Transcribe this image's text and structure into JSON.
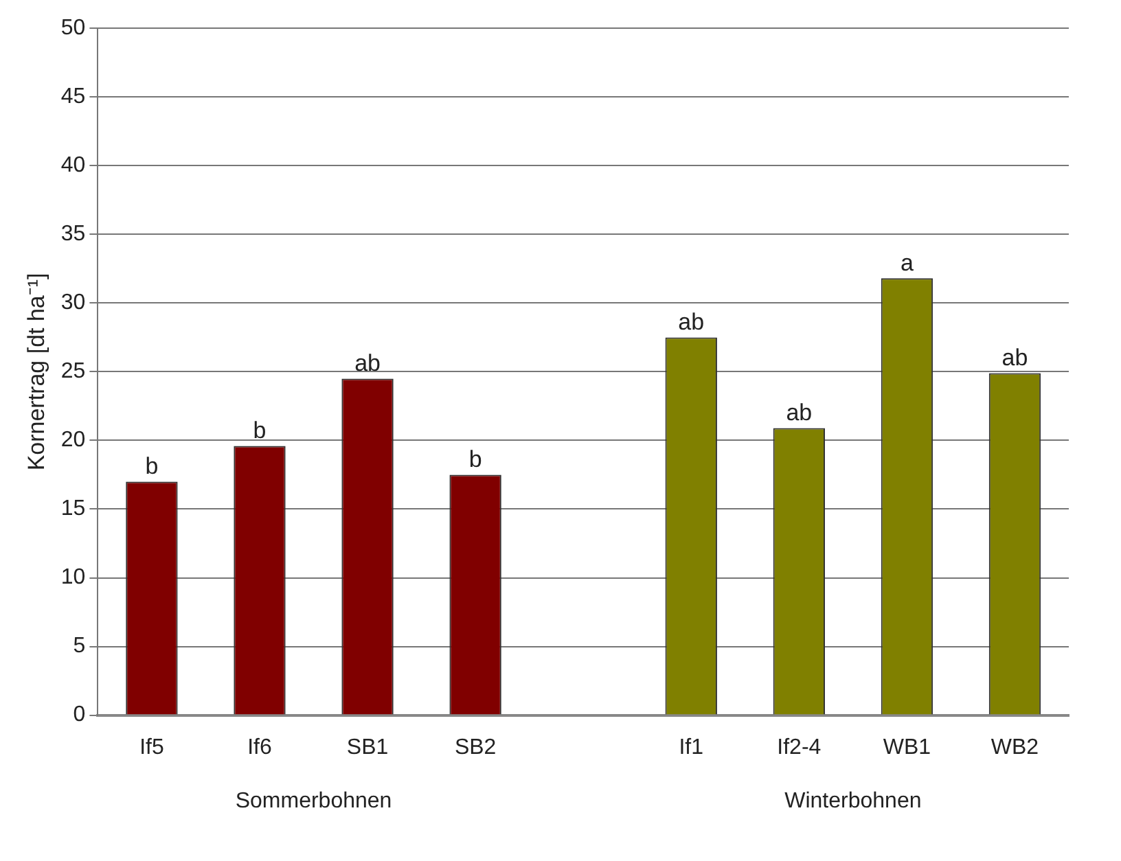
{
  "chart_data": {
    "type": "bar",
    "ylabel": "Kornertrag [dt ha⁻¹]",
    "categories": [
      "If5",
      "If6",
      "SB1",
      "SB2",
      null,
      "If1",
      "If2-4",
      "WB1",
      "WB2"
    ],
    "values": [
      17.0,
      19.6,
      24.5,
      17.5,
      null,
      27.5,
      20.9,
      31.8,
      24.9
    ],
    "colors": [
      "#800000",
      "#800000",
      "#800000",
      "#800000",
      "#808000",
      "#808000",
      "#808000",
      "#808000",
      "#808000"
    ],
    "value_labels": [
      "b",
      "b",
      "ab",
      "b",
      null,
      "ab",
      "ab",
      "a",
      "ab"
    ],
    "annotations": [
      "Sommerbohnen",
      "Winterbohnen"
    ],
    "ylim": [
      0,
      50
    ],
    "yticks": [
      0,
      5,
      10,
      15,
      20,
      25,
      30,
      35,
      40,
      45,
      50
    ],
    "grid": "y"
  }
}
